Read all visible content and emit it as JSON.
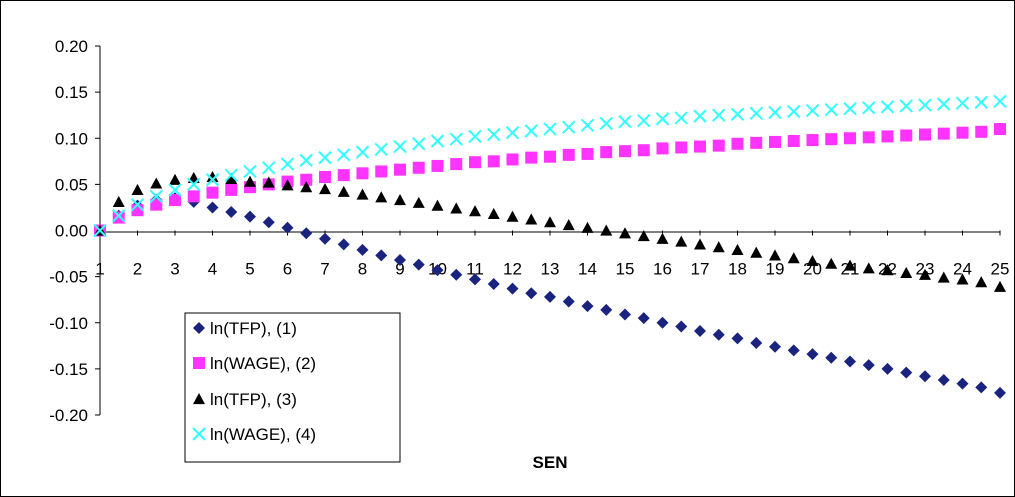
{
  "chart_data": {
    "type": "scatter",
    "xlabel": "SEN",
    "ylabel": "",
    "title": "",
    "x": [
      1,
      1.5,
      2,
      2.5,
      3,
      3.5,
      4,
      4.5,
      5,
      5.5,
      6,
      6.5,
      7,
      7.5,
      8,
      8.5,
      9,
      9.5,
      10,
      10.5,
      11,
      11.5,
      12,
      12.5,
      13,
      13.5,
      14,
      14.5,
      15,
      15.5,
      16,
      16.5,
      17,
      17.5,
      18,
      18.5,
      19,
      19.5,
      20,
      20.5,
      21,
      21.5,
      22,
      22.5,
      23,
      23.5,
      24,
      24.5,
      25
    ],
    "x_ticks": [
      "1",
      "2",
      "3",
      "4",
      "5",
      "6",
      "7",
      "8",
      "9",
      "10",
      "11",
      "12",
      "13",
      "14",
      "15",
      "16",
      "17",
      "18",
      "19",
      "20",
      "21",
      "22",
      "23",
      "24",
      "25"
    ],
    "ylim": [
      -0.2,
      0.2
    ],
    "y_ticks": [
      "0.20",
      "0.15",
      "0.10",
      "0.05",
      "0.00",
      "-0.05",
      "-0.10",
      "-0.15",
      "-0.20"
    ],
    "grid": false,
    "legend_position": "bottom-left",
    "series": [
      {
        "name": "ln(TFP), (1)",
        "marker": "diamond",
        "color": "#1a237e",
        "values": [
          0.0,
          0.016,
          0.027,
          0.033,
          0.035,
          0.031,
          0.025,
          0.02,
          0.015,
          0.009,
          0.003,
          -0.003,
          -0.009,
          -0.015,
          -0.021,
          -0.027,
          -0.032,
          -0.037,
          -0.043,
          -0.048,
          -0.053,
          -0.058,
          -0.063,
          -0.068,
          -0.072,
          -0.077,
          -0.082,
          -0.086,
          -0.091,
          -0.095,
          -0.1,
          -0.104,
          -0.109,
          -0.113,
          -0.117,
          -0.122,
          -0.126,
          -0.13,
          -0.134,
          -0.138,
          -0.142,
          -0.146,
          -0.15,
          -0.154,
          -0.158,
          -0.162,
          -0.166,
          -0.17,
          -0.176
        ]
      },
      {
        "name": "ln(WAGE), (2)",
        "marker": "square",
        "color": "#ff33ff",
        "values": [
          0.0,
          0.014,
          0.022,
          0.028,
          0.033,
          0.037,
          0.041,
          0.044,
          0.047,
          0.05,
          0.053,
          0.055,
          0.058,
          0.06,
          0.062,
          0.064,
          0.066,
          0.068,
          0.07,
          0.072,
          0.074,
          0.075,
          0.077,
          0.079,
          0.08,
          0.082,
          0.083,
          0.085,
          0.086,
          0.087,
          0.089,
          0.09,
          0.091,
          0.092,
          0.094,
          0.095,
          0.096,
          0.097,
          0.098,
          0.099,
          0.1,
          0.101,
          0.102,
          0.103,
          0.104,
          0.105,
          0.106,
          0.107,
          0.11
        ]
      },
      {
        "name": "ln(TFP), (3)",
        "marker": "triangle",
        "color": "#000000",
        "values": [
          0.0,
          0.031,
          0.044,
          0.051,
          0.055,
          0.057,
          0.058,
          0.056,
          0.053,
          0.052,
          0.049,
          0.047,
          0.045,
          0.042,
          0.039,
          0.036,
          0.033,
          0.03,
          0.027,
          0.024,
          0.021,
          0.018,
          0.015,
          0.012,
          0.009,
          0.006,
          0.003,
          0.0,
          -0.003,
          -0.006,
          -0.009,
          -0.012,
          -0.015,
          -0.018,
          -0.021,
          -0.024,
          -0.027,
          -0.03,
          -0.033,
          -0.036,
          -0.038,
          -0.041,
          -0.043,
          -0.046,
          -0.048,
          -0.051,
          -0.053,
          -0.056,
          -0.061
        ]
      },
      {
        "name": "ln(WAGE), (4)",
        "marker": "x",
        "color": "#33ffff",
        "values": [
          0.0,
          0.016,
          0.028,
          0.037,
          0.044,
          0.05,
          0.055,
          0.06,
          0.064,
          0.068,
          0.072,
          0.076,
          0.079,
          0.082,
          0.085,
          0.088,
          0.091,
          0.094,
          0.097,
          0.099,
          0.102,
          0.104,
          0.106,
          0.108,
          0.11,
          0.112,
          0.114,
          0.116,
          0.118,
          0.119,
          0.121,
          0.122,
          0.124,
          0.125,
          0.126,
          0.127,
          0.128,
          0.129,
          0.13,
          0.131,
          0.132,
          0.133,
          0.134,
          0.135,
          0.136,
          0.137,
          0.138,
          0.139,
          0.14
        ]
      }
    ]
  }
}
